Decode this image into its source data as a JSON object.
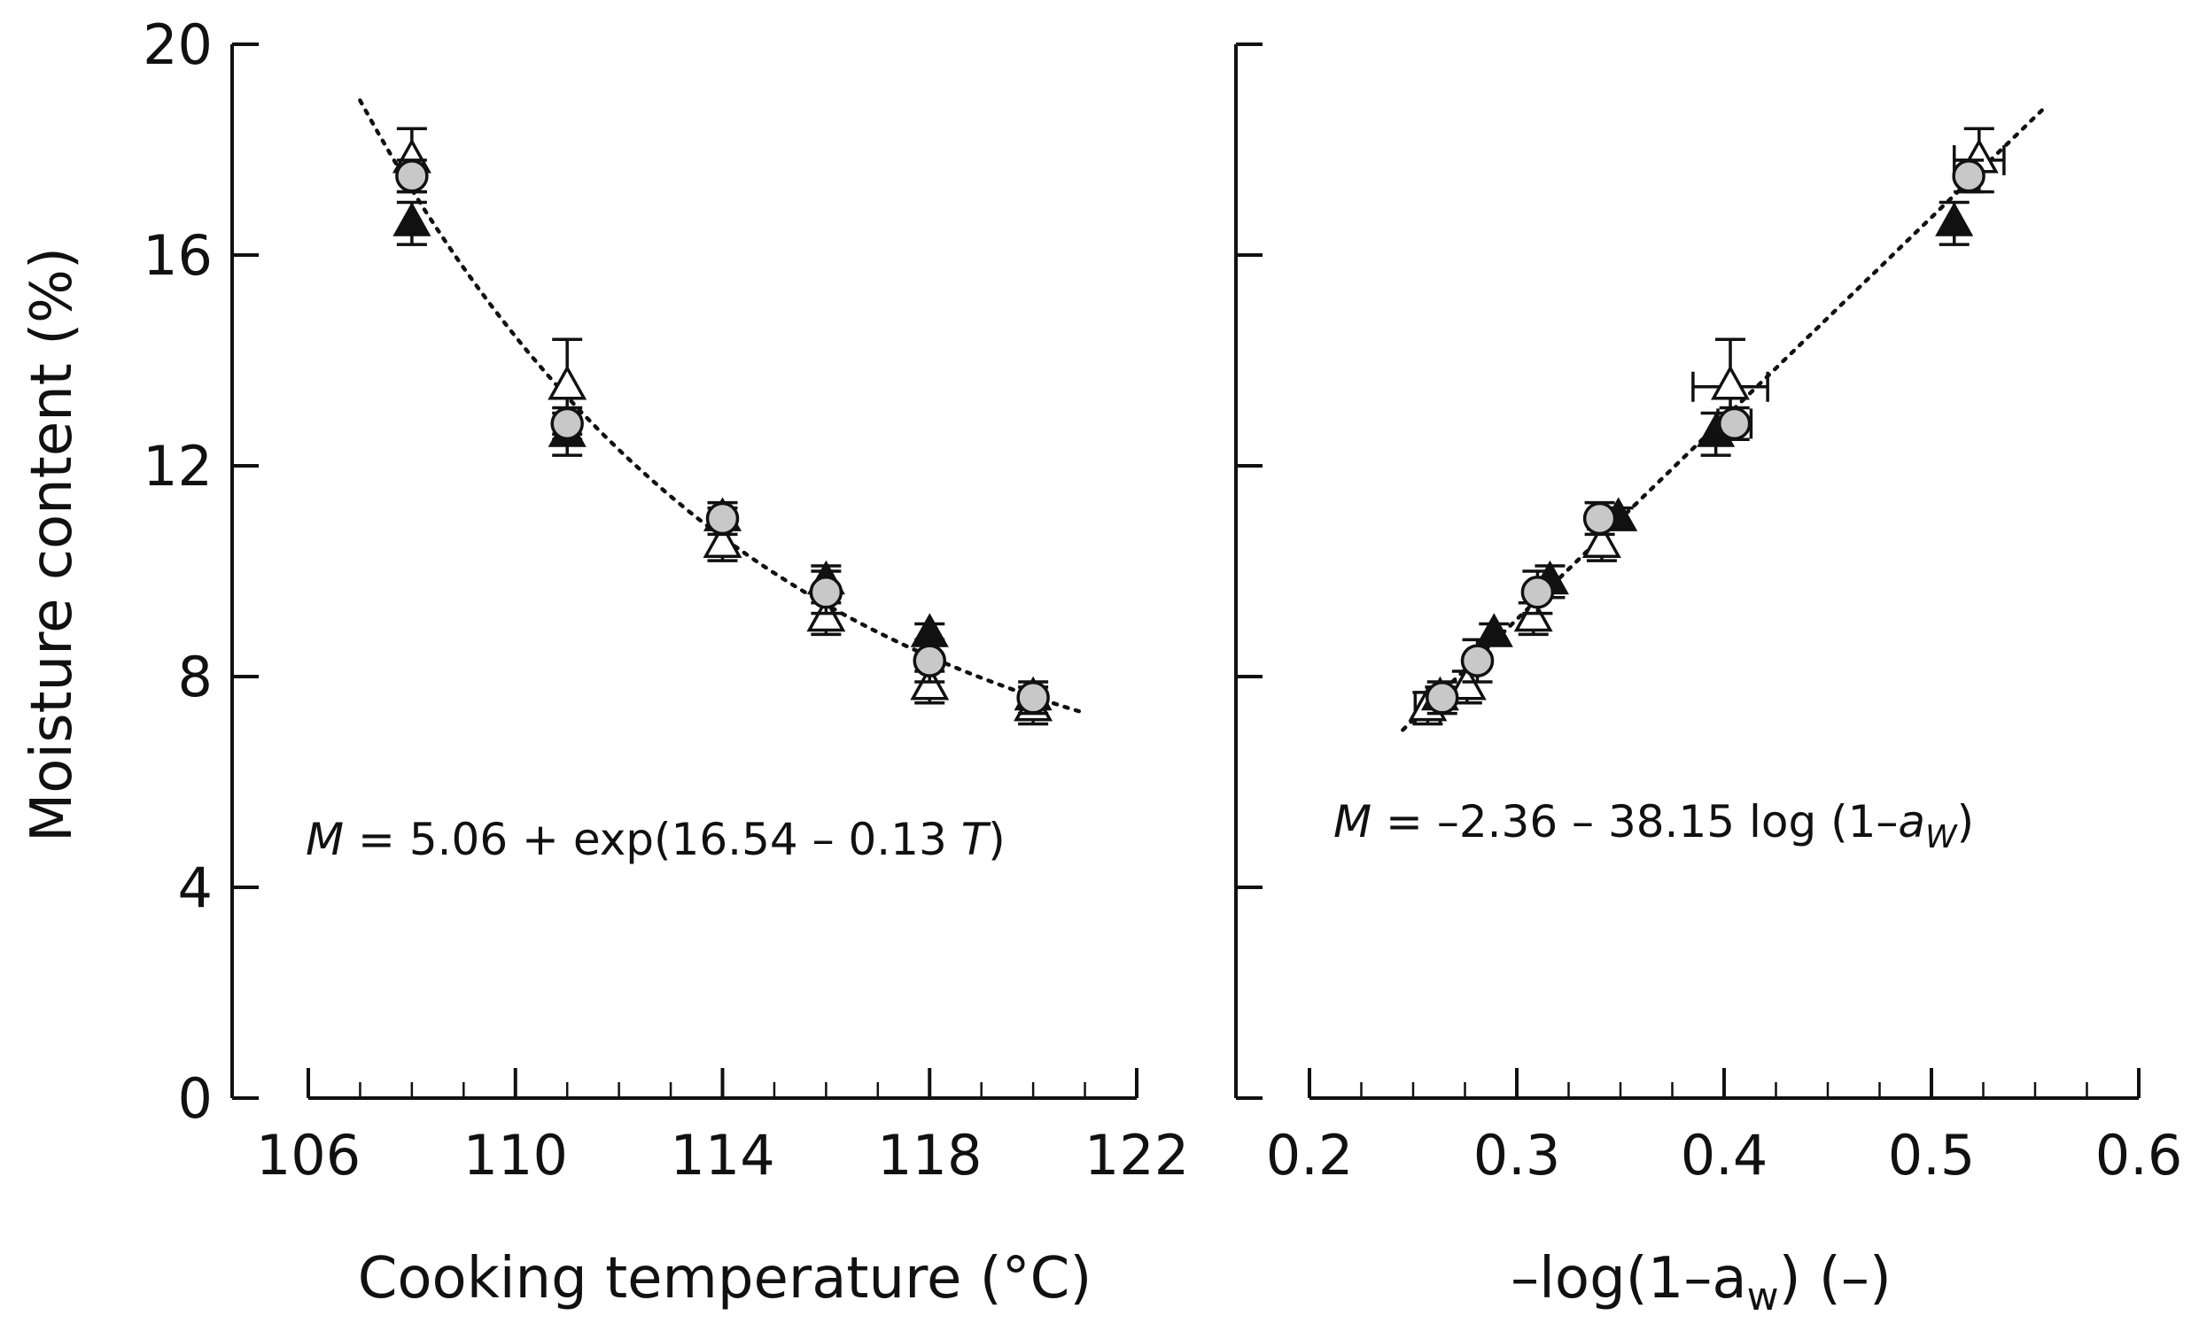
{
  "figure": {
    "shared_ylabel": "Moisture content (%)"
  },
  "chart_data": [
    {
      "type": "scatter",
      "ylabel": "Moisture content (%)",
      "xlabel": "Cooking temperature (°C)",
      "xlim": [
        106,
        122
      ],
      "ylim": [
        0,
        20
      ],
      "xticks": [
        "106",
        "110",
        "114",
        "118",
        "122"
      ],
      "yticks": [
        "0",
        "4",
        "8",
        "12",
        "16",
        "20"
      ],
      "equation": {
        "var": "M",
        "rest": " = 5.06 + exp(16.54 – 0.13 ",
        "var2": "T",
        "close": ")"
      },
      "fit": {
        "kind": "exp",
        "a": 5.06,
        "b": 16.54,
        "c": 0.13,
        "x_range": [
          107,
          121
        ]
      },
      "series": [
        {
          "name": "open triangle",
          "marker": "triangle-open",
          "points": [
            {
              "x": 108,
              "y": 17.8,
              "yerr": 0.6
            },
            {
              "x": 111,
              "y": 13.5,
              "yerr": 0.9
            },
            {
              "x": 114,
              "y": 10.5,
              "yerr": 0.3
            },
            {
              "x": 116,
              "y": 9.1,
              "yerr": 0.3
            },
            {
              "x": 118,
              "y": 7.8,
              "yerr": 0.3
            },
            {
              "x": 120,
              "y": 7.4,
              "yerr": 0.3
            }
          ]
        },
        {
          "name": "filled triangle",
          "marker": "triangle-filled",
          "points": [
            {
              "x": 108,
              "y": 16.6,
              "yerr": 0.4
            },
            {
              "x": 111,
              "y": 12.6,
              "yerr": 0.4
            },
            {
              "x": 114,
              "y": 11.0,
              "yerr": 0.2
            },
            {
              "x": 116,
              "y": 9.8,
              "yerr": 0.3
            },
            {
              "x": 118,
              "y": 8.8,
              "yerr": 0.2
            },
            {
              "x": 120,
              "y": 7.6,
              "yerr": 0.2
            }
          ]
        },
        {
          "name": "gray circle",
          "marker": "circle-gray",
          "points": [
            {
              "x": 108,
              "y": 17.5,
              "yerr": 0.3
            },
            {
              "x": 111,
              "y": 12.8,
              "yerr": 0.3
            },
            {
              "x": 114,
              "y": 11.0,
              "yerr": 0.3
            },
            {
              "x": 116,
              "y": 9.6,
              "yerr": 0.4
            },
            {
              "x": 118,
              "y": 8.3,
              "yerr": 0.4
            },
            {
              "x": 120,
              "y": 7.6,
              "yerr": 0.3
            }
          ]
        }
      ]
    },
    {
      "type": "scatter",
      "xlabel_parts": {
        "pre": "–log(1–a",
        "sub": "w",
        "post": ") (–)"
      },
      "xlim": [
        0.2,
        0.6
      ],
      "ylim": [
        0,
        20
      ],
      "xticks": [
        "0.2",
        "0.3",
        "0.4",
        "0.5",
        "0.6"
      ],
      "equation": {
        "var": "M",
        "rest": " = –2.36 – 38.15 log (1–",
        "var2": "a",
        "sub": "W",
        "close": ")"
      },
      "fit": {
        "kind": "linear",
        "intercept": -2.36,
        "slope": 38.15,
        "x_range": [
          0.245,
          0.555
        ]
      },
      "series": [
        {
          "name": "open triangle",
          "marker": "triangle-open",
          "points": [
            {
              "x": 0.523,
              "y": 17.8,
              "yerr": 0.6,
              "xerr": 0.012
            },
            {
              "x": 0.403,
              "y": 13.5,
              "yerr": 0.9,
              "xerr": 0.018
            },
            {
              "x": 0.341,
              "y": 10.5,
              "yerr": 0.3,
              "xerr": 0.004
            },
            {
              "x": 0.308,
              "y": 9.1,
              "yerr": 0.3,
              "xerr": 0.004
            },
            {
              "x": 0.276,
              "y": 7.8,
              "yerr": 0.3,
              "xerr": 0.004
            },
            {
              "x": 0.257,
              "y": 7.4,
              "yerr": 0.3,
              "xerr": 0.006
            }
          ]
        },
        {
          "name": "filled triangle",
          "marker": "triangle-filled",
          "points": [
            {
              "x": 0.511,
              "y": 16.6,
              "yerr": 0.4,
              "xerr": 0.004
            },
            {
              "x": 0.396,
              "y": 12.6,
              "yerr": 0.4,
              "xerr": 0.004
            },
            {
              "x": 0.349,
              "y": 11.0,
              "yerr": 0.2,
              "xerr": 0.004
            },
            {
              "x": 0.316,
              "y": 9.8,
              "yerr": 0.3,
              "xerr": 0.004
            },
            {
              "x": 0.289,
              "y": 8.8,
              "yerr": 0.2,
              "xerr": 0.004
            },
            {
              "x": 0.263,
              "y": 7.6,
              "yerr": 0.2,
              "xerr": 0.004
            }
          ]
        },
        {
          "name": "gray circle",
          "marker": "circle-gray",
          "points": [
            {
              "x": 0.518,
              "y": 17.5,
              "yerr": 0.3,
              "xerr": 0.004
            },
            {
              "x": 0.405,
              "y": 12.8,
              "yerr": 0.3,
              "xerr": 0.008
            },
            {
              "x": 0.34,
              "y": 11.0,
              "yerr": 0.3,
              "xerr": 0.004
            },
            {
              "x": 0.31,
              "y": 9.6,
              "yerr": 0.4,
              "xerr": 0.004
            },
            {
              "x": 0.281,
              "y": 8.3,
              "yerr": 0.4,
              "xerr": 0.004
            },
            {
              "x": 0.264,
              "y": 7.6,
              "yerr": 0.3,
              "xerr": 0.004
            }
          ]
        }
      ]
    }
  ]
}
